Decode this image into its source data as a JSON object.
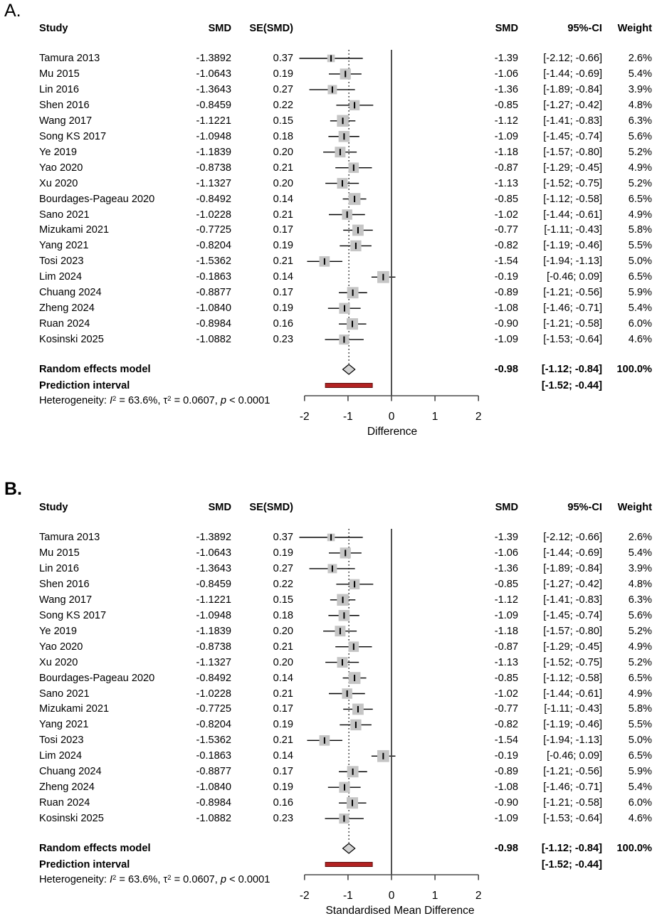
{
  "colors": {
    "square": "#c5c5c5",
    "ci_line": "#000000",
    "point_tick": "#000000",
    "zero_line": "#3f3f3f",
    "pooled_line": "#000000",
    "axis_line": "#4a4a4a",
    "diamond_fill": "#d4d4d4",
    "diamond_border": "#000000",
    "prediction_fill": "#b22222",
    "prediction_border": "#5f1010",
    "text": "#000000"
  },
  "chart_data": {
    "type": "forest",
    "panels": [
      {
        "label": "A.",
        "x_axis_label": "Difference"
      },
      {
        "label": "B.",
        "x_axis_label": "Standardised Mean Difference"
      }
    ],
    "columns": {
      "study": "Study",
      "smd_left": "SMD",
      "se": "SE(SMD)",
      "smd_right": "SMD",
      "ci": "95%-CI",
      "weight": "Weight"
    },
    "studies": [
      {
        "name": "Tamura 2013",
        "smd_raw": "-1.3892",
        "se": "0.37",
        "smd": "-1.39",
        "ci": "[-2.12; -0.66]",
        "weight": "2.6%",
        "est": -1.39,
        "lo": -2.12,
        "hi": -0.66,
        "w": 2.6
      },
      {
        "name": "Mu 2015",
        "smd_raw": "-1.0643",
        "se": "0.19",
        "smd": "-1.06",
        "ci": "[-1.44; -0.69]",
        "weight": "5.4%",
        "est": -1.06,
        "lo": -1.44,
        "hi": -0.69,
        "w": 5.4
      },
      {
        "name": "Lin 2016",
        "smd_raw": "-1.3643",
        "se": "0.27",
        "smd": "-1.36",
        "ci": "[-1.89; -0.84]",
        "weight": "3.9%",
        "est": -1.36,
        "lo": -1.89,
        "hi": -0.84,
        "w": 3.9
      },
      {
        "name": "Shen 2016",
        "smd_raw": "-0.8459",
        "se": "0.22",
        "smd": "-0.85",
        "ci": "[-1.27; -0.42]",
        "weight": "4.8%",
        "est": -0.85,
        "lo": -1.27,
        "hi": -0.42,
        "w": 4.8
      },
      {
        "name": "Wang 2017",
        "smd_raw": "-1.1221",
        "se": "0.15",
        "smd": "-1.12",
        "ci": "[-1.41; -0.83]",
        "weight": "6.3%",
        "est": -1.12,
        "lo": -1.41,
        "hi": -0.83,
        "w": 6.3
      },
      {
        "name": "Song KS 2017",
        "smd_raw": "-1.0948",
        "se": "0.18",
        "smd": "-1.09",
        "ci": "[-1.45; -0.74]",
        "weight": "5.6%",
        "est": -1.09,
        "lo": -1.45,
        "hi": -0.74,
        "w": 5.6
      },
      {
        "name": "Ye 2019",
        "smd_raw": "-1.1839",
        "se": "0.20",
        "smd": "-1.18",
        "ci": "[-1.57; -0.80]",
        "weight": "5.2%",
        "est": -1.18,
        "lo": -1.57,
        "hi": -0.8,
        "w": 5.2
      },
      {
        "name": "Yao 2020",
        "smd_raw": "-0.8738",
        "se": "0.21",
        "smd": "-0.87",
        "ci": "[-1.29; -0.45]",
        "weight": "4.9%",
        "est": -0.87,
        "lo": -1.29,
        "hi": -0.45,
        "w": 4.9
      },
      {
        "name": "Xu 2020",
        "smd_raw": "-1.1327",
        "se": "0.20",
        "smd": "-1.13",
        "ci": "[-1.52; -0.75]",
        "weight": "5.2%",
        "est": -1.13,
        "lo": -1.52,
        "hi": -0.75,
        "w": 5.2
      },
      {
        "name": "Bourdages-Pageau 2020",
        "smd_raw": "-0.8492",
        "se": "0.14",
        "smd": "-0.85",
        "ci": "[-1.12; -0.58]",
        "weight": "6.5%",
        "est": -0.85,
        "lo": -1.12,
        "hi": -0.58,
        "w": 6.5
      },
      {
        "name": "Sano 2021",
        "smd_raw": "-1.0228",
        "se": "0.21",
        "smd": "-1.02",
        "ci": "[-1.44; -0.61]",
        "weight": "4.9%",
        "est": -1.02,
        "lo": -1.44,
        "hi": -0.61,
        "w": 4.9
      },
      {
        "name": "Mizukami 2021",
        "smd_raw": "-0.7725",
        "se": "0.17",
        "smd": "-0.77",
        "ci": "[-1.11; -0.43]",
        "weight": "5.8%",
        "est": -0.77,
        "lo": -1.11,
        "hi": -0.43,
        "w": 5.8
      },
      {
        "name": "Yang 2021",
        "smd_raw": "-0.8204",
        "se": "0.19",
        "smd": "-0.82",
        "ci": "[-1.19; -0.46]",
        "weight": "5.5%",
        "est": -0.82,
        "lo": -1.19,
        "hi": -0.46,
        "w": 5.5
      },
      {
        "name": "Tosi 2023",
        "smd_raw": "-1.5362",
        "se": "0.21",
        "smd": "-1.54",
        "ci": "[-1.94; -1.13]",
        "weight": "5.0%",
        "est": -1.54,
        "lo": -1.94,
        "hi": -1.13,
        "w": 5.0
      },
      {
        "name": "Lim 2024",
        "smd_raw": "-0.1863",
        "se": "0.14",
        "smd": "-0.19",
        "ci": "[-0.46;  0.09]",
        "weight": "6.5%",
        "est": -0.19,
        "lo": -0.46,
        "hi": 0.09,
        "w": 6.5
      },
      {
        "name": "Chuang 2024",
        "smd_raw": "-0.8877",
        "se": "0.17",
        "smd": "-0.89",
        "ci": "[-1.21; -0.56]",
        "weight": "5.9%",
        "est": -0.89,
        "lo": -1.21,
        "hi": -0.56,
        "w": 5.9
      },
      {
        "name": "Zheng 2024",
        "smd_raw": "-1.0840",
        "se": "0.19",
        "smd": "-1.08",
        "ci": "[-1.46; -0.71]",
        "weight": "5.4%",
        "est": -1.08,
        "lo": -1.46,
        "hi": -0.71,
        "w": 5.4
      },
      {
        "name": "Ruan 2024",
        "smd_raw": "-0.8984",
        "se": "0.16",
        "smd": "-0.90",
        "ci": "[-1.21; -0.58]",
        "weight": "6.0%",
        "est": -0.9,
        "lo": -1.21,
        "hi": -0.58,
        "w": 6.0
      },
      {
        "name": "Kosinski 2025",
        "smd_raw": "-1.0882",
        "se": "0.23",
        "smd": "-1.09",
        "ci": "[-1.53; -0.64]",
        "weight": "4.6%",
        "est": -1.09,
        "lo": -1.53,
        "hi": -0.64,
        "w": 4.6
      }
    ],
    "summary": {
      "label": "Random effects model",
      "smd": "-0.98",
      "ci": "[-1.12; -0.84]",
      "weight": "100.0%",
      "est": -0.98,
      "lo": -1.12,
      "hi": -0.84
    },
    "prediction": {
      "label": "Prediction interval",
      "ci": "[-1.52; -0.44]",
      "lo": -1.52,
      "hi": -0.44
    },
    "heterogeneity": {
      "prefix": "Heterogeneity: ",
      "i_symbol": "I",
      "i_sup": "2",
      "after_i": " = 63.6%, ",
      "tau_symbol": "τ",
      "tau_sup": "2",
      "after_tau": " = 0.0607, ",
      "p_symbol": "p",
      "p_value": " < 0.0001"
    },
    "axis": {
      "xmin": -2,
      "xmax": 2,
      "ticks": [
        -2,
        -1,
        0,
        1,
        2
      ],
      "zero_ref": 0,
      "pooled_estimate": -0.98
    }
  }
}
